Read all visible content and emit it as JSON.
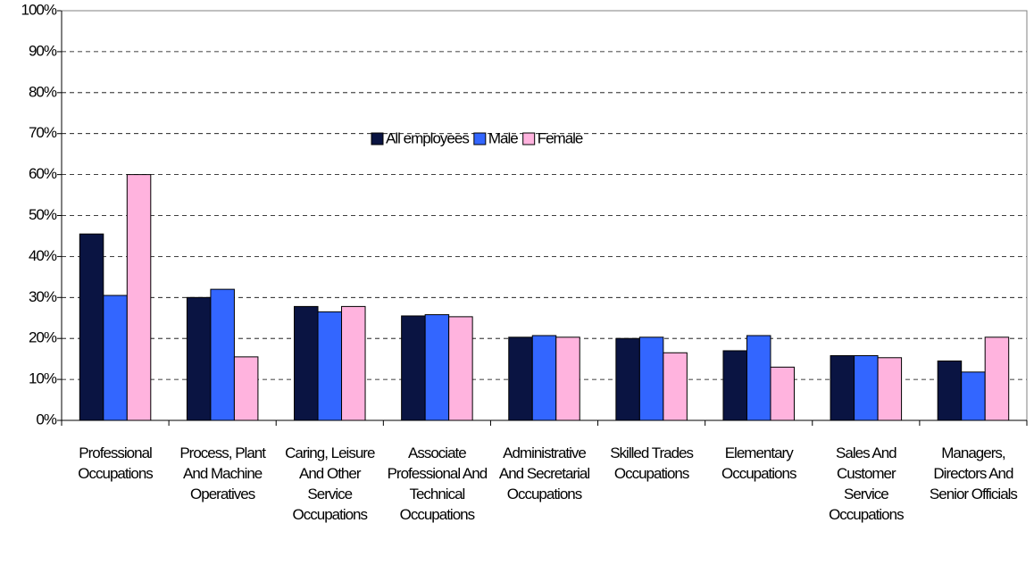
{
  "chart_data": {
    "type": "bar",
    "categories": [
      "Professional Occupations",
      "Process, Plant And Machine Operatives",
      "Caring, Leisure And Other Service Occupations",
      "Associate Professional And Technical Occupations",
      "Administrative And Secretarial Occupations",
      "Skilled Trades Occupations",
      "Elementary Occupations",
      "Sales And Customer Service Occupations",
      "Managers, Directors And Senior Officials"
    ],
    "series": [
      {
        "name": "All employees",
        "color": "#0a1442",
        "values": [
          45.5,
          30,
          27.8,
          25.5,
          20.3,
          20,
          17,
          15.8,
          14.5
        ]
      },
      {
        "name": "Male",
        "color": "#3366ff",
        "values": [
          30.5,
          32,
          26.5,
          25.8,
          20.7,
          20.3,
          20.7,
          15.8,
          11.8
        ]
      },
      {
        "name": "Female",
        "color": "#ffb3de",
        "values": [
          60,
          15.5,
          27.8,
          25.3,
          20.3,
          16.5,
          13,
          15.3,
          20.3
        ]
      }
    ],
    "ylim": [
      0,
      100
    ],
    "yticks": [
      {
        "value": 0,
        "label": "0%"
      },
      {
        "value": 10,
        "label": "10%"
      },
      {
        "value": 20,
        "label": "20%"
      },
      {
        "value": 30,
        "label": "30%"
      },
      {
        "value": 40,
        "label": "40%"
      },
      {
        "value": 50,
        "label": "50%"
      },
      {
        "value": 60,
        "label": "60%"
      },
      {
        "value": 70,
        "label": "70%"
      },
      {
        "value": 80,
        "label": "80%"
      },
      {
        "value": 90,
        "label": "90%"
      },
      {
        "value": 100,
        "label": "100%"
      }
    ],
    "grid": true,
    "legend": "top"
  }
}
